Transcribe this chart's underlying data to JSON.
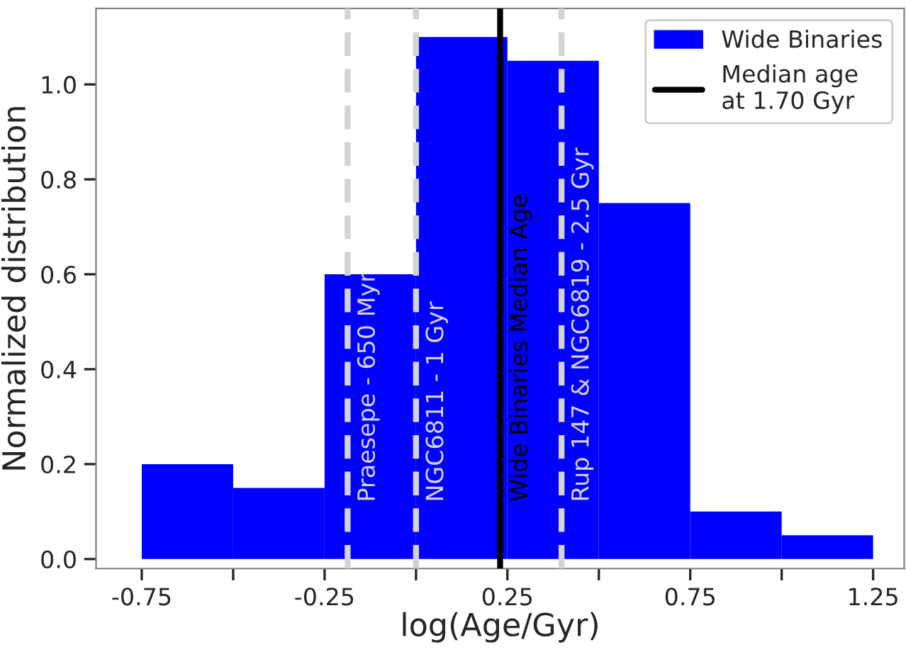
{
  "chart_data": {
    "type": "histogram",
    "xlabel": "log(Age/Gyr)",
    "ylabel": "Normalized distribution",
    "bins": [
      -0.75,
      -0.5,
      -0.25,
      0.0,
      0.25,
      0.5,
      0.75,
      1.0,
      1.25
    ],
    "series": [
      {
        "name": "Wide Binaries",
        "color": "#0000ff",
        "values": [
          0.2,
          0.15,
          0.6,
          1.1,
          1.05,
          0.75,
          0.1,
          0.05
        ]
      }
    ],
    "xlim": [
      -0.875,
      1.335
    ],
    "ylim": [
      -0.02,
      1.16
    ],
    "xticks": [
      -0.75,
      {
        "value": -0.5,
        "label": null
      },
      -0.25,
      {
        "value": 0.0,
        "label": null
      },
      0.25,
      {
        "value": 0.5,
        "label": null
      },
      0.75,
      {
        "value": 1.0,
        "label": null
      },
      1.25
    ],
    "yticks": [
      {
        "value": 0.0,
        "label": "0.0"
      },
      0.2,
      0.4,
      0.6,
      0.8,
      {
        "value": 1.0,
        "label": "1.0"
      }
    ],
    "ref_lines": [
      {
        "axis": "x",
        "value": -0.187,
        "label": "Praesepe - 650 Myr",
        "color": "#d3d3d3",
        "line_style": "dashed"
      },
      {
        "axis": "x",
        "value": 0.0,
        "label": "NGC6811 - 1 Gyr",
        "color": "#d3d3d3",
        "line_style": "dashed"
      },
      {
        "axis": "x",
        "value": 0.23,
        "label": "Wide Binaries Median Age",
        "color": "#000000",
        "line_style": "solid"
      },
      {
        "axis": "x",
        "value": 0.398,
        "label": "Rup 147 & NGC6819 - 2.5 Gyr",
        "color": "#d3d3d3",
        "line_style": "dashed"
      }
    ],
    "annotations": [
      "Median age\nat 1.70 Gyr"
    ],
    "legend": "top right",
    "grid": false
  }
}
